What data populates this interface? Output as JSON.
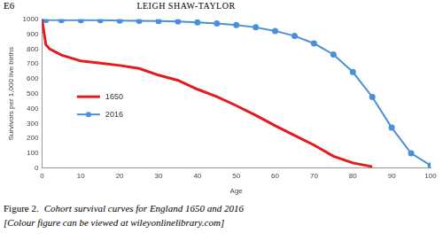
{
  "header": {
    "page": "E6",
    "author": "LEIGH SHAW-TAYLOR"
  },
  "chart_data": {
    "type": "line",
    "x_label": "Age",
    "y_label": "Survivors per 1,000 live births",
    "xlim": [
      0,
      100
    ],
    "xticks": [
      0,
      10,
      20,
      30,
      40,
      50,
      60,
      70,
      80,
      90,
      100
    ],
    "ylim": [
      0,
      1000
    ],
    "yticks": [
      0,
      100,
      200,
      300,
      400,
      500,
      600,
      700,
      800,
      900,
      1000
    ],
    "grid": false,
    "legend": "center left",
    "series": [
      {
        "name": "1650",
        "color": "#e41a1c",
        "marker": "none",
        "line_style": "solid",
        "x": [
          0,
          1,
          2,
          5,
          10,
          15,
          20,
          25,
          30,
          35,
          40,
          45,
          50,
          55,
          60,
          65,
          70,
          75,
          80,
          85
        ],
        "values": [
          1000,
          830,
          800,
          760,
          720,
          705,
          690,
          670,
          625,
          590,
          530,
          480,
          420,
          355,
          285,
          220,
          155,
          80,
          35,
          10
        ]
      },
      {
        "name": "2016",
        "color": "#4a90d9",
        "marker": "circle",
        "line_style": "solid",
        "x": [
          0,
          1,
          5,
          10,
          15,
          20,
          25,
          30,
          35,
          40,
          45,
          50,
          55,
          60,
          65,
          70,
          75,
          80,
          85,
          90,
          95,
          100
        ],
        "values": [
          1000,
          996,
          995,
          995,
          994,
          992,
          990,
          988,
          985,
          980,
          972,
          962,
          946,
          922,
          888,
          838,
          764,
          646,
          478,
          272,
          100,
          18
        ]
      }
    ]
  },
  "caption": {
    "label": "Figure 2.",
    "text": "Cohort survival curves for England 1650 and 2016",
    "note": "[Colour figure can be viewed at wileyonlinelibrary.com]"
  }
}
